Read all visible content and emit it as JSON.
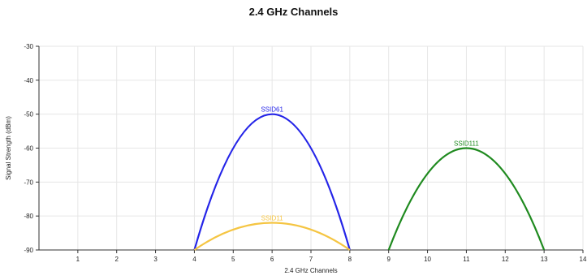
{
  "chart_data": {
    "type": "line",
    "title": "2.4 GHz Channels",
    "xlabel": "2.4 GHz Channels",
    "ylabel": "Signal Strength (dBm)",
    "xlim": [
      0,
      14
    ],
    "ylim": [
      -90,
      -30
    ],
    "x_ticks": [
      1,
      2,
      3,
      4,
      5,
      6,
      7,
      8,
      9,
      10,
      11,
      12,
      13,
      14
    ],
    "y_ticks": [
      -30,
      -40,
      -50,
      -60,
      -70,
      -80,
      -90
    ],
    "grid": true,
    "series": [
      {
        "name": "SSID61",
        "color": "#2424e8",
        "start_channel": 4,
        "end_channel": 8,
        "peak_channel": 6,
        "peak": -50,
        "base": -90
      },
      {
        "name": "SSID11",
        "color": "#f5c542",
        "start_channel": 4,
        "end_channel": 8,
        "peak_channel": 6,
        "peak": -82,
        "base": -90
      },
      {
        "name": "SSID111",
        "color": "#1f8a1f",
        "start_channel": 9,
        "end_channel": 13,
        "peak_channel": 11,
        "peak": -60,
        "base": -90
      }
    ]
  }
}
